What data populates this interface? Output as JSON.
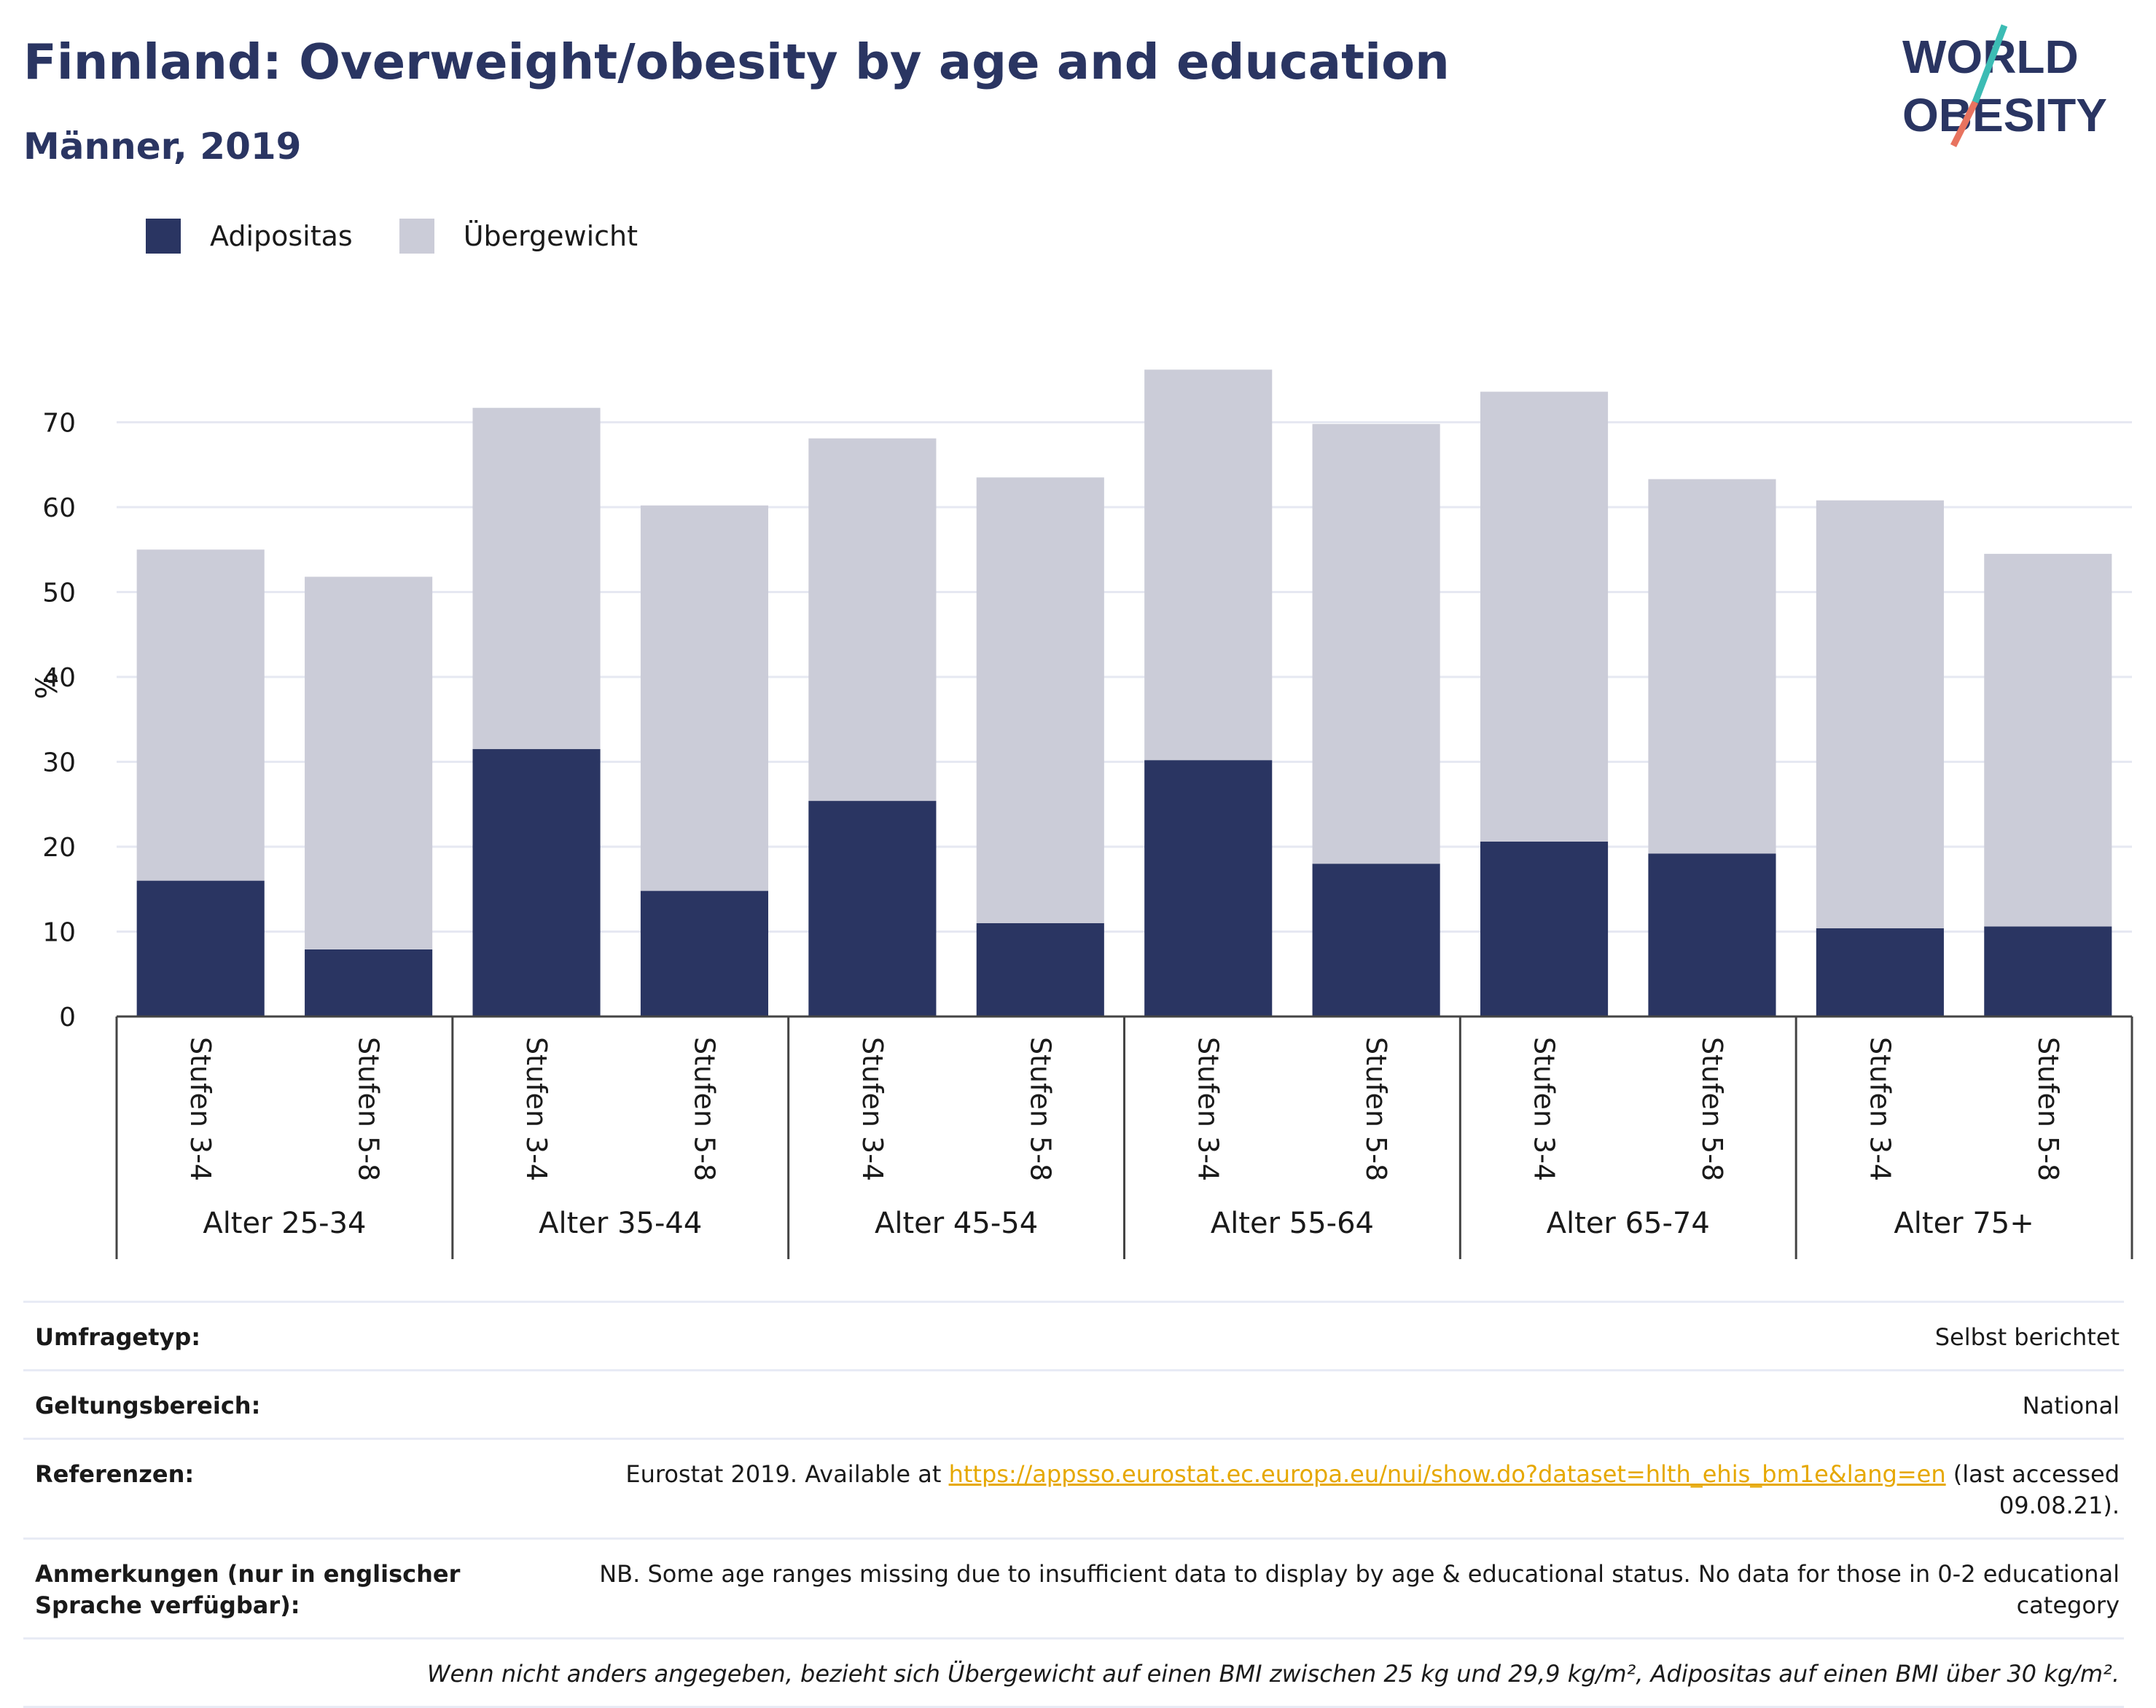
{
  "header": {
    "title": "Finnland: Overweight/obesity by age and education",
    "subtitle": "Männer, 2019",
    "logo_line1": "WORLD",
    "logo_line2": "OBESITY"
  },
  "legend": {
    "items": [
      {
        "label": "Adipositas",
        "color": "#2a3562"
      },
      {
        "label": "Übergewicht",
        "color": "#cbccd8"
      }
    ]
  },
  "chart_data": {
    "type": "bar",
    "stacked": true,
    "title": "Finnland: Overweight/obesity by age and education",
    "subtitle": "Männer, 2019",
    "ylabel": "%",
    "ylim": [
      0,
      78
    ],
    "yticks": [
      0,
      10,
      20,
      30,
      40,
      50,
      60,
      70
    ],
    "grid": true,
    "legend_position": "top-left",
    "groups": [
      "Alter 25-34",
      "Alter 35-44",
      "Alter 45-54",
      "Alter 55-64",
      "Alter 65-74",
      "Alter 75+"
    ],
    "subcategories": [
      "Stufen 3-4",
      "Stufen 5-8"
    ],
    "series": [
      {
        "name": "Adipositas",
        "color": "#2a3562",
        "values": [
          16.0,
          7.9,
          31.5,
          14.8,
          25.4,
          11.0,
          30.2,
          18.0,
          20.6,
          19.2,
          10.4,
          10.6
        ]
      },
      {
        "name": "Übergewicht",
        "color": "#cbccd8",
        "values": [
          39.0,
          43.9,
          40.2,
          45.4,
          42.7,
          52.5,
          46.0,
          51.8,
          53.0,
          44.1,
          50.4,
          43.9
        ]
      }
    ]
  },
  "meta": {
    "rows": [
      {
        "key": "Umfragetyp:",
        "value": "Selbst berichtet"
      },
      {
        "key": "Geltungsbereich:",
        "value": "National"
      }
    ],
    "references": {
      "key": "Referenzen:",
      "prefix": "Eurostat 2019. Available at",
      "link": "https://appsso.eurostat.ec.europa.eu/nui/show.do?dataset=hlth_ehis_bm1e&lang=en",
      "suffix": "(last accessed 09.08.21)."
    },
    "notes": {
      "key": "Anmerkungen (nur in englischer Sprache verfügbar):",
      "value": "NB. Some age ranges missing due to insufficient data to display by age & educational status. No data for those in 0-2 educational category"
    },
    "footnote": "Wenn nicht anders angegeben, bezieht sich Übergewicht auf einen BMI zwischen 25 kg und 29,9 kg/m², Adipositas auf einen BMI über 30 kg/m²."
  }
}
